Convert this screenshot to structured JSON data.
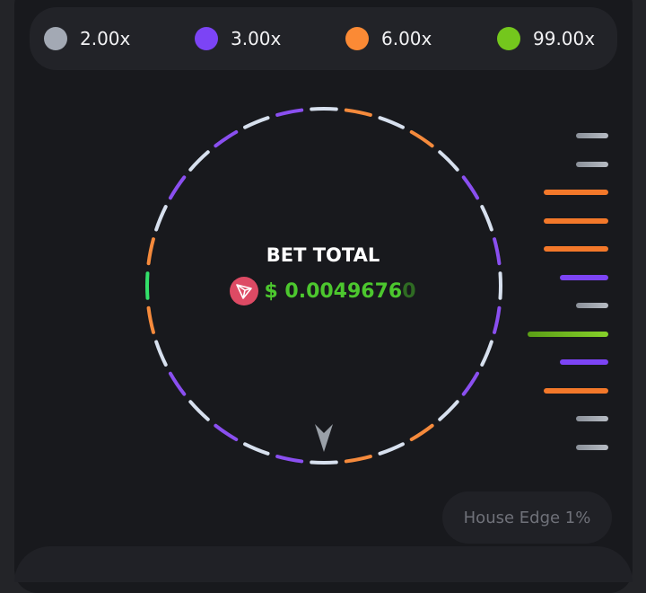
{
  "legend": [
    {
      "label": "2.00x",
      "color": "#a3a9b4"
    },
    {
      "label": "3.00x",
      "color": "#7c44f5"
    },
    {
      "label": "6.00x",
      "color": "#fb8a35"
    },
    {
      "label": "99.00x",
      "color": "#74c71d"
    }
  ],
  "wheel": {
    "segments": [
      "2.00x",
      "6.00x",
      "2.00x",
      "6.00x",
      "2.00x",
      "3.00x",
      "2.00x",
      "3.00x",
      "2.00x",
      "3.00x",
      "2.00x",
      "3.00x",
      "2.00x",
      "6.00x",
      "2.00x",
      "6.00x",
      "2.00x",
      "3.00x",
      "2.00x",
      "3.00x",
      "2.00x",
      "3.00x",
      "2.00x",
      "6.00x",
      "99.00x",
      "6.00x",
      "2.00x",
      "3.00x",
      "2.00x",
      "3.00x",
      "2.00x",
      "3.00x"
    ],
    "segment_colors": {
      "2.00x": "#d7e0ee",
      "3.00x": "#8a4ff0",
      "6.00x": "#f58a3c",
      "99.00x": "#33e06a"
    },
    "pointer_icon": "arrowhead-pointer-icon"
  },
  "bet": {
    "title": "BET TOTAL",
    "amount_main": "$ 0.0049676",
    "amount_faded": "0",
    "currency_icon": "tron-icon",
    "currency_color": "#dd4a64"
  },
  "history": [
    "2.00x",
    "2.00x",
    "6.00x",
    "6.00x",
    "6.00x",
    "3.00x",
    "2.00x",
    "99.00x",
    "3.00x",
    "6.00x",
    "2.00x",
    "2.00x"
  ],
  "house_edge": "House Edge 1%"
}
